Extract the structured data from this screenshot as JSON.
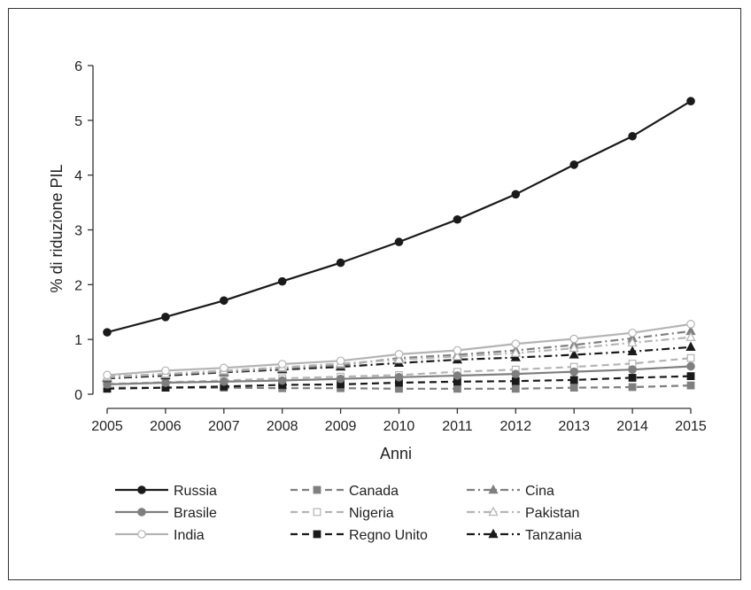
{
  "chart_data": {
    "type": "line",
    "title": "",
    "xlabel": "Anni",
    "ylabel": "% di riduzione PIL",
    "x": [
      2005,
      2006,
      2007,
      2008,
      2009,
      2010,
      2011,
      2012,
      2013,
      2014,
      2015
    ],
    "xticks": [
      "2005",
      "2006",
      "2007",
      "2008",
      "2009",
      "2010",
      "2011",
      "2012",
      "2013",
      "2014",
      "2015"
    ],
    "yticks": [
      "0",
      "1",
      "2",
      "3",
      "4",
      "5",
      "6"
    ],
    "ylim": [
      0,
      6
    ],
    "grid": false,
    "legend_position": "bottom",
    "series": [
      {
        "name": "Russia",
        "color": "#1a1a1a",
        "dash": "solid",
        "marker": "circle-filled",
        "values": [
          1.13,
          1.41,
          1.71,
          2.06,
          2.4,
          2.78,
          3.19,
          3.65,
          4.19,
          4.71,
          5.35
        ]
      },
      {
        "name": "Canada",
        "color": "#7f7f7f",
        "dash": "dashed",
        "marker": "square-filled",
        "values": [
          0.12,
          0.12,
          0.12,
          0.11,
          0.11,
          0.1,
          0.1,
          0.1,
          0.12,
          0.13,
          0.16
        ]
      },
      {
        "name": "Cina",
        "color": "#7f7f7f",
        "dash": "dashdot",
        "marker": "triangle-filled",
        "values": [
          0.3,
          0.36,
          0.41,
          0.47,
          0.53,
          0.66,
          0.72,
          0.8,
          0.9,
          1.02,
          1.15
        ]
      },
      {
        "name": "Brasile",
        "color": "#7f7f7f",
        "dash": "solid",
        "marker": "circle-filled",
        "values": [
          0.18,
          0.21,
          0.23,
          0.25,
          0.28,
          0.31,
          0.34,
          0.37,
          0.41,
          0.45,
          0.51
        ]
      },
      {
        "name": "Nigeria",
        "color": "#b4b4b4",
        "dash": "dashed",
        "marker": "square-open",
        "values": [
          0.19,
          0.22,
          0.25,
          0.29,
          0.32,
          0.35,
          0.41,
          0.45,
          0.5,
          0.56,
          0.66
        ]
      },
      {
        "name": "Pakistan",
        "color": "#b4b4b4",
        "dash": "dashdot",
        "marker": "triangle-open",
        "values": [
          0.32,
          0.37,
          0.43,
          0.49,
          0.56,
          0.63,
          0.69,
          0.75,
          0.84,
          0.94,
          1.04
        ]
      },
      {
        "name": "India",
        "color": "#b4b4b4",
        "dash": "solid",
        "marker": "circle-open",
        "values": [
          0.35,
          0.43,
          0.48,
          0.55,
          0.61,
          0.73,
          0.8,
          0.92,
          1.01,
          1.12,
          1.28
        ]
      },
      {
        "name": "Regno Unito",
        "color": "#1a1a1a",
        "dash": "dashed",
        "marker": "square-filled",
        "values": [
          0.1,
          0.12,
          0.14,
          0.17,
          0.18,
          0.21,
          0.23,
          0.24,
          0.26,
          0.3,
          0.33
        ]
      },
      {
        "name": "Tanzania",
        "color": "#1a1a1a",
        "dash": "dashdot",
        "marker": "triangle-filled",
        "values": [
          0.29,
          0.34,
          0.4,
          0.45,
          0.5,
          0.57,
          0.63,
          0.67,
          0.72,
          0.78,
          0.86
        ]
      }
    ]
  }
}
